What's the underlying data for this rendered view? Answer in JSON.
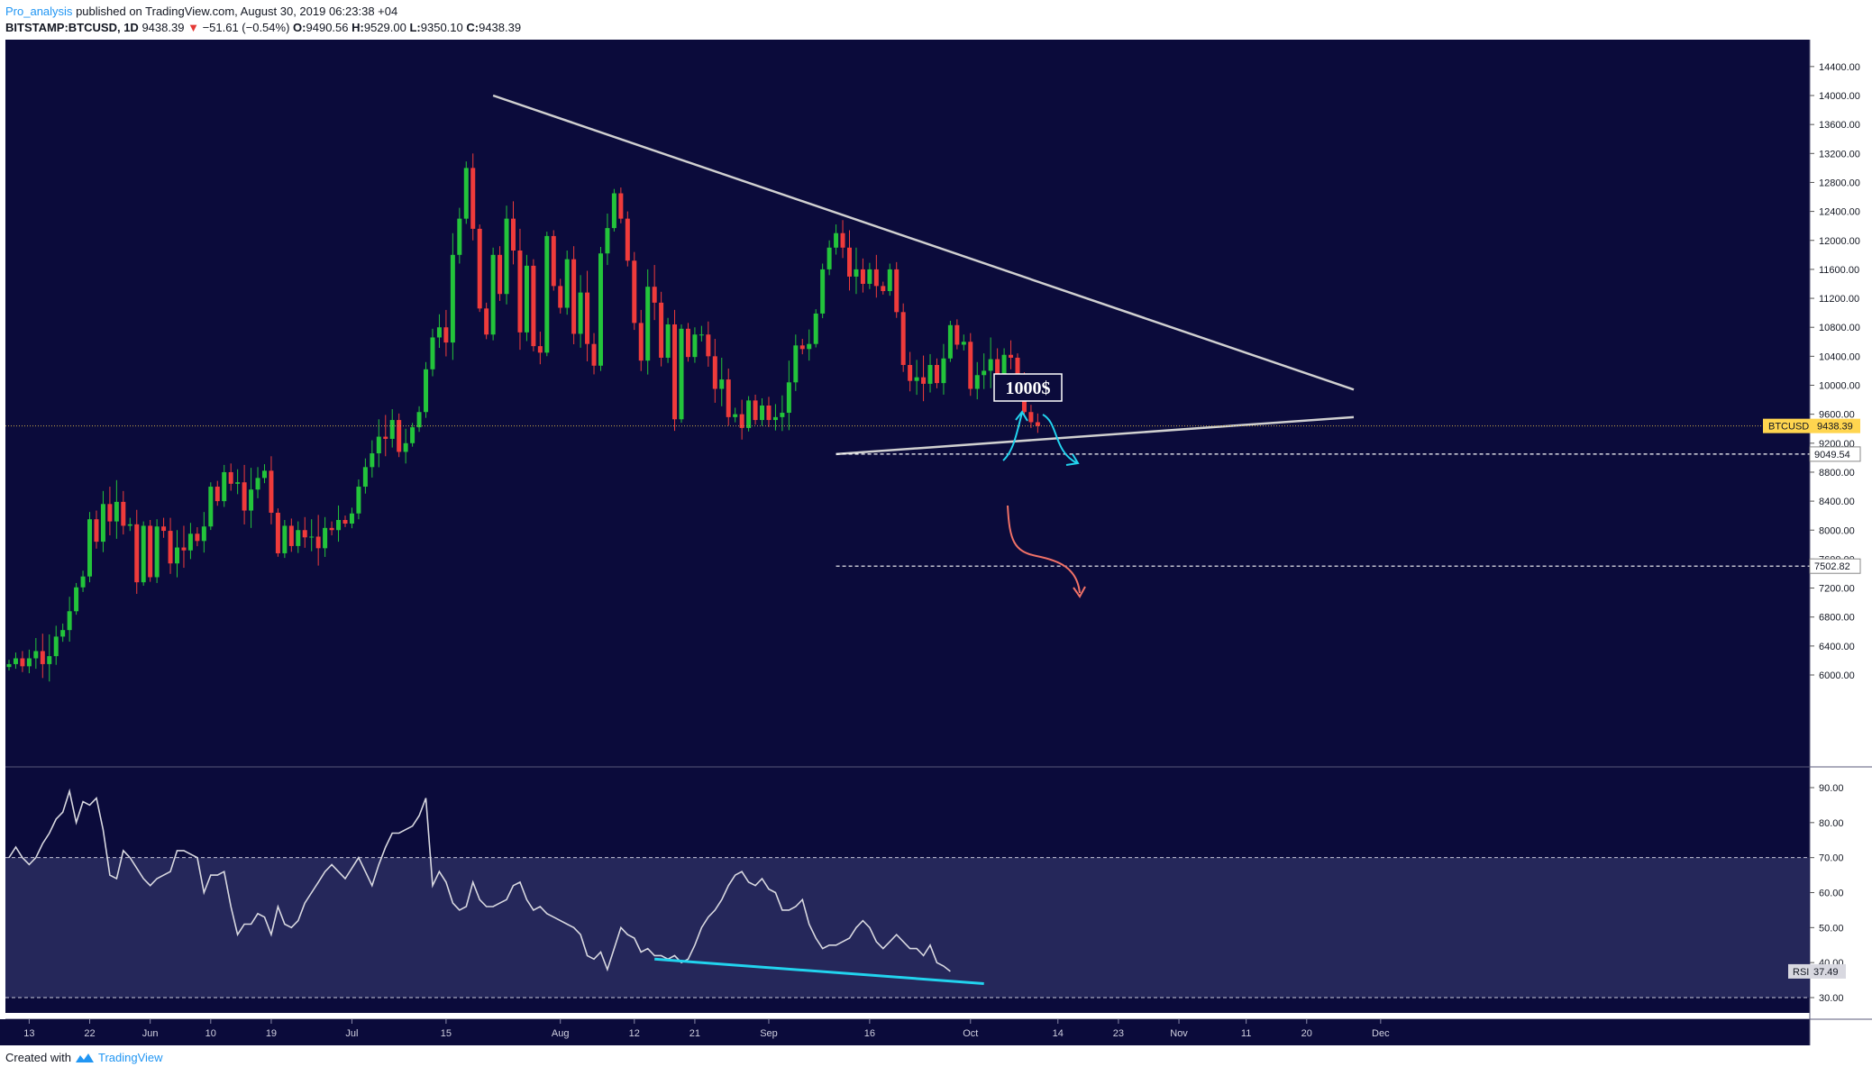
{
  "header": {
    "author": "Pro_analysis",
    "published_text": "published on TradingView.com, August 30, 2019 06:23:38 +04",
    "symbol": "BITSTAMP:BTCUSD, 1D",
    "last": "9438.39",
    "change": "−51.61 (−0.54%)",
    "o_label": "O:",
    "o_value": "9490.56",
    "h_label": "H:",
    "h_value": "9529.00",
    "l_label": "L:",
    "l_value": "9350.10",
    "c_label": "C:",
    "c_value": "9438.39"
  },
  "footer": {
    "created_with": "Created with",
    "brand": "TradingView"
  },
  "colors": {
    "background": "#0b0b3b",
    "up": "#26a69a",
    "up_bright": "#23c43b",
    "down": "#ef3b3b",
    "trendline": "#d0d0d0",
    "cyan": "#22d3ee",
    "salmon": "#f07167",
    "rsi_band": "#25275a",
    "price_label": "#ffd54f"
  },
  "chart_data": [
    {
      "type": "candlestick",
      "symbol": "BTCUSD",
      "interval": "1D",
      "ylim": [
        5800,
        14600
      ],
      "y_ticks": [
        "14400.00",
        "14000.00",
        "13600.00",
        "13200.00",
        "12800.00",
        "12400.00",
        "12000.00",
        "11600.00",
        "11200.00",
        "10800.00",
        "10400.00",
        "10000.00",
        "9600.00",
        "9200.00",
        "8800.00",
        "8400.00",
        "8000.00",
        "7600.00",
        "7200.00",
        "6800.00",
        "6400.00",
        "6000.00"
      ],
      "x_ticks": [
        {
          "label": "13",
          "day": 3
        },
        {
          "label": "22",
          "day": 12
        },
        {
          "label": "Jun",
          "day": 21
        },
        {
          "label": "10",
          "day": 30
        },
        {
          "label": "19",
          "day": 39
        },
        {
          "label": "Jul",
          "day": 51
        },
        {
          "label": "15",
          "day": 65
        },
        {
          "label": "Aug",
          "day": 82
        },
        {
          "label": "12",
          "day": 93
        },
        {
          "label": "21",
          "day": 102
        },
        {
          "label": "Sep",
          "day": 113
        },
        {
          "label": "16",
          "day": 128
        },
        {
          "label": "Oct",
          "day": 143
        },
        {
          "label": "14",
          "day": 156
        },
        {
          "label": "23",
          "day": 165
        },
        {
          "label": "Nov",
          "day": 174
        },
        {
          "label": "11",
          "day": 184
        },
        {
          "label": "20",
          "day": 193
        },
        {
          "label": "Dec",
          "day": 204
        }
      ],
      "closes": [
        6150,
        6230,
        6120,
        6230,
        6330,
        6150,
        6260,
        6530,
        6620,
        6880,
        7210,
        7360,
        8150,
        7840,
        8360,
        8120,
        8390,
        8060,
        8080,
        7280,
        8060,
        7350,
        8050,
        7990,
        7540,
        7760,
        7720,
        7950,
        7850,
        8050,
        8600,
        8400,
        8800,
        8640,
        8660,
        8270,
        8560,
        8720,
        8820,
        8240,
        7680,
        8060,
        7780,
        8000,
        7900,
        7910,
        7750,
        8030,
        8000,
        8140,
        8090,
        8230,
        8600,
        8870,
        9060,
        9290,
        9260,
        9520,
        9080,
        9200,
        9420,
        9630,
        10220,
        10660,
        10800,
        10590,
        11800,
        12300,
        13000,
        12160,
        11060,
        10700,
        11800,
        11260,
        12300,
        11860,
        10730,
        11650,
        10540,
        10450,
        12060,
        11370,
        11070,
        11740,
        10710,
        11280,
        10570,
        10270,
        11820,
        12170,
        12650,
        12300,
        11720,
        10860,
        10340,
        11360,
        11140,
        10380,
        10840,
        9530,
        10780,
        10390,
        10700,
        10700,
        10400,
        9950,
        10080,
        9560,
        9600,
        9410,
        9790,
        9520,
        9720,
        9520,
        9560,
        9620,
        10040,
        10550,
        10500,
        10570,
        10990,
        11600,
        11900,
        12100,
        11900,
        11500,
        11600,
        11400,
        11600,
        11370,
        11300,
        11600,
        11010,
        10280,
        10060,
        10110,
        10020,
        10280,
        10030,
        10370,
        10830,
        10560,
        10600,
        9950,
        10140,
        10200,
        10360,
        10140,
        10420,
        10380,
        10100,
        9630,
        9490,
        9438.39
      ],
      "current_price_label": "BTCUSD",
      "current_price": "9438.39",
      "level_labels": [
        "9049.54",
        "7502.82"
      ],
      "level_values": [
        9049.54,
        7502.82
      ],
      "support_line": {
        "from": [
          123,
          9049.54
        ],
        "to": [
          200,
          9560
        ]
      },
      "resistance_line": {
        "from": [
          72,
          14000
        ],
        "to": [
          200,
          9940
        ]
      },
      "annotation": "1000$"
    },
    {
      "type": "line",
      "indicator": "RSI",
      "ylim": [
        25,
        95
      ],
      "y_ticks": [
        "90.00",
        "80.00",
        "70.00",
        "60.00",
        "50.00",
        "40.00",
        "30.00"
      ],
      "band": [
        30,
        70
      ],
      "legend_label": "RSI",
      "last_value": "37.49",
      "values": [
        70,
        73,
        70,
        68,
        70,
        74,
        77,
        81,
        83,
        89,
        80,
        86,
        85,
        87,
        78,
        65,
        64,
        72,
        70,
        67,
        64,
        62,
        64,
        65,
        66,
        72,
        72,
        71,
        70,
        60,
        65,
        65,
        66,
        56,
        48,
        51,
        51,
        54,
        53,
        48,
        56,
        51,
        50,
        52,
        57,
        60,
        63,
        66,
        68,
        66,
        64,
        67,
        70,
        66,
        62,
        68,
        73,
        77,
        77,
        78,
        79,
        82,
        87,
        62,
        66,
        63,
        57,
        55,
        56,
        63,
        58,
        56,
        56,
        57,
        58,
        62,
        63,
        58,
        55,
        56,
        54,
        53,
        52,
        51,
        50,
        48,
        42,
        41,
        43,
        38,
        44,
        50,
        48,
        47,
        43,
        44,
        42,
        42,
        41,
        42,
        40,
        41,
        45,
        50,
        53,
        55,
        58,
        62,
        65,
        66,
        63,
        62,
        64,
        61,
        60,
        55,
        55,
        56,
        58,
        51,
        47,
        44,
        45,
        45,
        46,
        47,
        50,
        52,
        50,
        46,
        44,
        46,
        48,
        46,
        44,
        44,
        42,
        45,
        40,
        39,
        37.49
      ],
      "divergence_line": {
        "from": [
          96,
          41
        ],
        "to": [
          145,
          34
        ]
      }
    }
  ]
}
